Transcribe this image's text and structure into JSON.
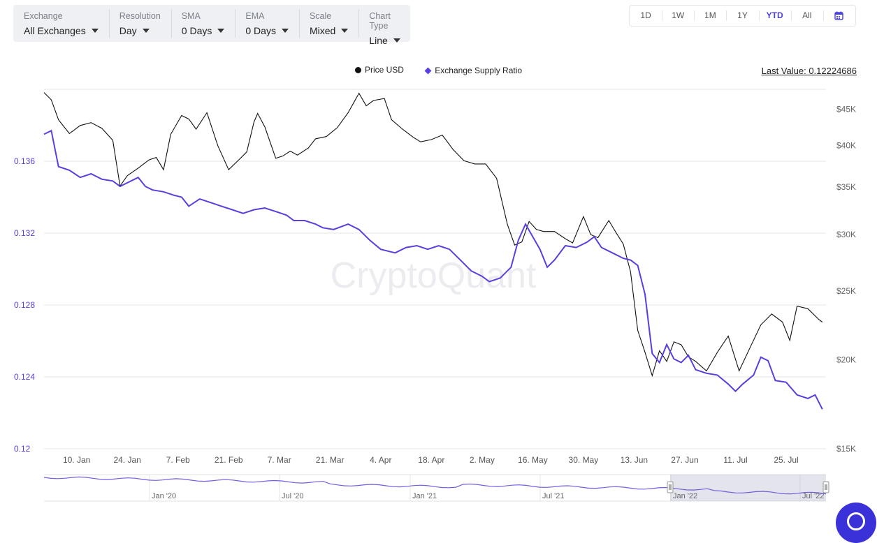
{
  "filters": [
    {
      "label": "Exchange",
      "value": "All Exchanges"
    },
    {
      "label": "Resolution",
      "value": "Day"
    },
    {
      "label": "SMA",
      "value": "0 Days"
    },
    {
      "label": "EMA",
      "value": "0 Days"
    },
    {
      "label": "Scale",
      "value": "Mixed"
    },
    {
      "label": "Chart Type",
      "value": "Line"
    }
  ],
  "ranges": [
    "1D",
    "1W",
    "1M",
    "1Y",
    "YTD",
    "All"
  ],
  "active_range": "YTD",
  "calendar_icon": "calendar-icon",
  "last_value_text": "Last Value: 0.12224686",
  "watermark": "CryptoQuant",
  "colors": {
    "price": "#111111",
    "ratio": "#5b3ee0",
    "accent": "#4a3fe0"
  },
  "chart_data": {
    "type": "line",
    "x_ticks": [
      "10. Jan",
      "24. Jan",
      "7. Feb",
      "21. Feb",
      "7. Mar",
      "21. Mar",
      "4. Apr",
      "18. Apr",
      "2. May",
      "16. May",
      "30. May",
      "13. Jun",
      "27. Jun",
      "11. Jul",
      "25. Jul"
    ],
    "x_range": [
      "2022-01-01",
      "2022-08-05"
    ],
    "left_axis": {
      "ticks": [
        "0.136",
        "0.132",
        "0.128",
        "0.124",
        "0.12"
      ],
      "range": [
        0.12,
        0.14
      ]
    },
    "right_axis": {
      "ticks": [
        "$45K",
        "$40K",
        "$35K",
        "$30K",
        "$25K",
        "$20K",
        "$15K"
      ],
      "range": [
        15000,
        48000
      ],
      "scale": "log"
    },
    "series": [
      {
        "name": "Price USD",
        "axis": "right",
        "points": [
          [
            "2022-01-01",
            47500
          ],
          [
            "2022-01-03",
            46400
          ],
          [
            "2022-01-05",
            43500
          ],
          [
            "2022-01-08",
            41600
          ],
          [
            "2022-01-11",
            42700
          ],
          [
            "2022-01-14",
            43100
          ],
          [
            "2022-01-17",
            42300
          ],
          [
            "2022-01-20",
            40700
          ],
          [
            "2022-01-22",
            35100
          ],
          [
            "2022-01-24",
            36300
          ],
          [
            "2022-01-27",
            37200
          ],
          [
            "2022-01-30",
            38200
          ],
          [
            "2022-02-01",
            38500
          ],
          [
            "2022-02-03",
            37000
          ],
          [
            "2022-02-05",
            41500
          ],
          [
            "2022-02-08",
            44100
          ],
          [
            "2022-02-10",
            43600
          ],
          [
            "2022-02-12",
            42200
          ],
          [
            "2022-02-15",
            44500
          ],
          [
            "2022-02-18",
            40000
          ],
          [
            "2022-02-21",
            37000
          ],
          [
            "2022-02-24",
            38300
          ],
          [
            "2022-02-26",
            39200
          ],
          [
            "2022-02-28",
            43200
          ],
          [
            "2022-03-01",
            44400
          ],
          [
            "2022-03-03",
            42500
          ],
          [
            "2022-03-06",
            38400
          ],
          [
            "2022-03-08",
            38700
          ],
          [
            "2022-03-10",
            39300
          ],
          [
            "2022-03-12",
            38800
          ],
          [
            "2022-03-15",
            39700
          ],
          [
            "2022-03-17",
            40900
          ],
          [
            "2022-03-20",
            41200
          ],
          [
            "2022-03-23",
            42400
          ],
          [
            "2022-03-26",
            44500
          ],
          [
            "2022-03-29",
            47400
          ],
          [
            "2022-03-31",
            45500
          ],
          [
            "2022-04-02",
            46300
          ],
          [
            "2022-04-05",
            46600
          ],
          [
            "2022-04-07",
            43500
          ],
          [
            "2022-04-10",
            42200
          ],
          [
            "2022-04-13",
            41100
          ],
          [
            "2022-04-15",
            40500
          ],
          [
            "2022-04-18",
            40800
          ],
          [
            "2022-04-21",
            41400
          ],
          [
            "2022-04-24",
            39500
          ],
          [
            "2022-04-27",
            38100
          ],
          [
            "2022-04-30",
            37700
          ],
          [
            "2022-05-03",
            37700
          ],
          [
            "2022-05-06",
            36000
          ],
          [
            "2022-05-09",
            31000
          ],
          [
            "2022-05-11",
            29000
          ],
          [
            "2022-05-13",
            29300
          ],
          [
            "2022-05-15",
            31300
          ],
          [
            "2022-05-17",
            30500
          ],
          [
            "2022-05-19",
            30300
          ],
          [
            "2022-05-22",
            30300
          ],
          [
            "2022-05-25",
            29600
          ],
          [
            "2022-05-27",
            29200
          ],
          [
            "2022-05-30",
            31800
          ],
          [
            "2022-06-01",
            30000
          ],
          [
            "2022-06-03",
            29700
          ],
          [
            "2022-06-06",
            31400
          ],
          [
            "2022-06-08",
            30200
          ],
          [
            "2022-06-10",
            29100
          ],
          [
            "2022-06-12",
            26600
          ],
          [
            "2022-06-14",
            22000
          ],
          [
            "2022-06-16",
            20500
          ],
          [
            "2022-06-18",
            19000
          ],
          [
            "2022-06-20",
            20600
          ],
          [
            "2022-06-22",
            19900
          ],
          [
            "2022-06-24",
            21200
          ],
          [
            "2022-06-26",
            21000
          ],
          [
            "2022-06-28",
            20200
          ],
          [
            "2022-06-30",
            19900
          ],
          [
            "2022-07-03",
            19300
          ],
          [
            "2022-07-06",
            20500
          ],
          [
            "2022-07-09",
            21600
          ],
          [
            "2022-07-12",
            19300
          ],
          [
            "2022-07-15",
            20800
          ],
          [
            "2022-07-18",
            22400
          ],
          [
            "2022-07-21",
            23200
          ],
          [
            "2022-07-24",
            22600
          ],
          [
            "2022-07-26",
            21300
          ],
          [
            "2022-07-28",
            23800
          ],
          [
            "2022-07-31",
            23600
          ],
          [
            "2022-08-03",
            22800
          ],
          [
            "2022-08-04",
            22600
          ]
        ]
      },
      {
        "name": "Exchange Supply Ratio",
        "axis": "left",
        "points": [
          [
            "2022-01-01",
            0.1375
          ],
          [
            "2022-01-03",
            0.1377
          ],
          [
            "2022-01-05",
            0.1357
          ],
          [
            "2022-01-08",
            0.1355
          ],
          [
            "2022-01-11",
            0.1351
          ],
          [
            "2022-01-14",
            0.1353
          ],
          [
            "2022-01-17",
            0.135
          ],
          [
            "2022-01-20",
            0.1349
          ],
          [
            "2022-01-22",
            0.1346
          ],
          [
            "2022-01-24",
            0.1348
          ],
          [
            "2022-01-26",
            0.135
          ],
          [
            "2022-01-27",
            0.1351
          ],
          [
            "2022-01-29",
            0.1346
          ],
          [
            "2022-01-31",
            0.1344
          ],
          [
            "2022-02-03",
            0.1343
          ],
          [
            "2022-02-06",
            0.1341
          ],
          [
            "2022-02-08",
            0.134
          ],
          [
            "2022-02-10",
            0.1335
          ],
          [
            "2022-02-13",
            0.1339
          ],
          [
            "2022-02-16",
            0.1337
          ],
          [
            "2022-02-19",
            0.1335
          ],
          [
            "2022-02-22",
            0.1333
          ],
          [
            "2022-02-25",
            0.1331
          ],
          [
            "2022-02-28",
            0.1333
          ],
          [
            "2022-03-03",
            0.1334
          ],
          [
            "2022-03-06",
            0.1332
          ],
          [
            "2022-03-09",
            0.133
          ],
          [
            "2022-03-11",
            0.1327
          ],
          [
            "2022-03-14",
            0.1327
          ],
          [
            "2022-03-17",
            0.1325
          ],
          [
            "2022-03-19",
            0.1323
          ],
          [
            "2022-03-22",
            0.1322
          ],
          [
            "2022-03-26",
            0.1325
          ],
          [
            "2022-03-29",
            0.1322
          ],
          [
            "2022-04-01",
            0.1316
          ],
          [
            "2022-04-04",
            0.1311
          ],
          [
            "2022-04-08",
            0.1309
          ],
          [
            "2022-04-11",
            0.1312
          ],
          [
            "2022-04-14",
            0.1313
          ],
          [
            "2022-04-17",
            0.1311
          ],
          [
            "2022-04-20",
            0.1313
          ],
          [
            "2022-04-23",
            0.1311
          ],
          [
            "2022-04-26",
            0.1305
          ],
          [
            "2022-04-29",
            0.1299
          ],
          [
            "2022-05-02",
            0.1296
          ],
          [
            "2022-05-04",
            0.1293
          ],
          [
            "2022-05-07",
            0.1295
          ],
          [
            "2022-05-10",
            0.1301
          ],
          [
            "2022-05-12",
            0.1316
          ],
          [
            "2022-05-14",
            0.1325
          ],
          [
            "2022-05-16",
            0.1318
          ],
          [
            "2022-05-18",
            0.1311
          ],
          [
            "2022-05-20",
            0.1301
          ],
          [
            "2022-05-22",
            0.1305
          ],
          [
            "2022-05-25",
            0.1313
          ],
          [
            "2022-05-28",
            0.1312
          ],
          [
            "2022-05-31",
            0.1315
          ],
          [
            "2022-06-02",
            0.1318
          ],
          [
            "2022-06-04",
            0.1312
          ],
          [
            "2022-06-07",
            0.1309
          ],
          [
            "2022-06-10",
            0.1306
          ],
          [
            "2022-06-12",
            0.1305
          ],
          [
            "2022-06-14",
            0.1302
          ],
          [
            "2022-06-16",
            0.1286
          ],
          [
            "2022-06-18",
            0.1253
          ],
          [
            "2022-06-20",
            0.1248
          ],
          [
            "2022-06-22",
            0.1258
          ],
          [
            "2022-06-24",
            0.125
          ],
          [
            "2022-06-26",
            0.1248
          ],
          [
            "2022-06-28",
            0.1252
          ],
          [
            "2022-06-30",
            0.1244
          ],
          [
            "2022-07-03",
            0.1242
          ],
          [
            "2022-07-06",
            0.1241
          ],
          [
            "2022-07-09",
            0.1236
          ],
          [
            "2022-07-11",
            0.1232
          ],
          [
            "2022-07-13",
            0.1236
          ],
          [
            "2022-07-16",
            0.1241
          ],
          [
            "2022-07-18",
            0.1251
          ],
          [
            "2022-07-20",
            0.1249
          ],
          [
            "2022-07-22",
            0.1238
          ],
          [
            "2022-07-25",
            0.1237
          ],
          [
            "2022-07-28",
            0.123
          ],
          [
            "2022-07-31",
            0.1228
          ],
          [
            "2022-08-02",
            0.123
          ],
          [
            "2022-08-04",
            0.1222
          ]
        ]
      }
    ],
    "navigator": {
      "labels": [
        "Jan '20",
        "Jul '20",
        "Jan '21",
        "Jul '21",
        "Jan '22",
        "Jul '22"
      ]
    },
    "legend_position": "top-center",
    "grid": "horizontal"
  }
}
